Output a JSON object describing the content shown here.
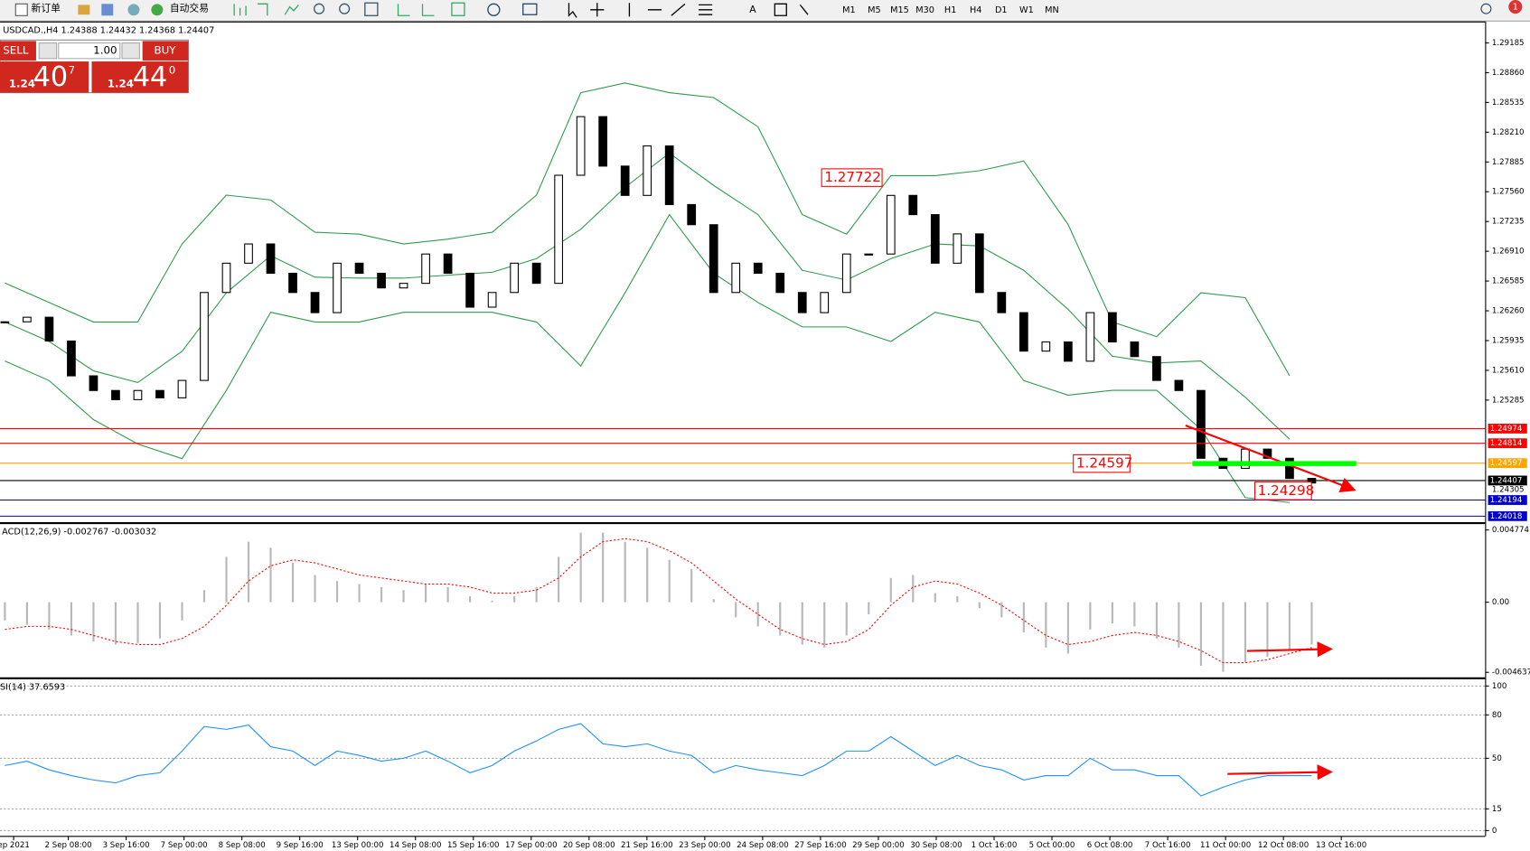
{
  "toolbar": {
    "new_order": "新订单",
    "auto_trading": "自动交易",
    "timeframes": [
      "M1",
      "M5",
      "M15",
      "M30",
      "H1",
      "H4",
      "D1",
      "W1",
      "MN"
    ],
    "notification": "1"
  },
  "trade_panel": {
    "sell": "SELL",
    "buy": "BUY",
    "lot": "1.00",
    "sell_price": {
      "big": "1.24",
      "pips": "40",
      "point": "7"
    },
    "buy_price": {
      "big": "1.24",
      "pips": "44",
      "point": "0"
    }
  },
  "price_chart": {
    "header": "USDCAD.,H4  1.24388 1.24432 1.24368 1.24407",
    "ylim": [
      1.23953,
      1.29419
    ],
    "yticks": [
      1.29185,
      {
        "value": 1.2886,
        "label": "1.28860"
      },
      1.28535,
      {
        "value": 1.2821,
        "label": "1.28210"
      },
      1.27885,
      {
        "value": 1.2756,
        "label": "1.27560"
      },
      1.27235,
      {
        "value": 1.2691,
        "label": "1.26910"
      },
      1.26585,
      {
        "value": 1.2626,
        "label": "1.26260"
      },
      1.25935,
      {
        "value": 1.2561,
        "label": "1.25610"
      },
      1.25285
    ],
    "close": [
      1.2614,
      1.2619,
      1.2593,
      1.2555,
      1.2539,
      1.2529,
      1.2539,
      1.2531,
      1.255,
      1.2646,
      1.2678,
      1.2699,
      1.2667,
      1.2646,
      1.2624,
      1.2678,
      1.2667,
      1.2651,
      1.2656,
      1.2688,
      1.2667,
      1.263,
      1.2646,
      1.2678,
      1.2656,
      1.2774,
      1.2838,
      1.2784,
      1.2752,
      1.2806,
      1.2742,
      1.272,
      1.2646,
      1.2678,
      1.2667,
      1.2646,
      1.2624,
      1.2646,
      1.2688,
      1.2688,
      1.2752,
      1.2731,
      1.2678,
      1.271,
      1.2646,
      1.2624,
      1.2582,
      1.2592,
      1.2571,
      1.2624,
      1.2592,
      1.2576,
      1.255,
      1.2539,
      1.2465,
      1.2454,
      1.2475,
      1.2465,
      1.2443,
      1.2438
    ],
    "bands": {
      "upper": [
        1.26564,
        1.26351,
        1.26138,
        1.26138,
        1.2699,
        1.27523,
        1.2747,
        1.27118,
        1.27097,
        1.2699,
        1.27043,
        1.27118,
        1.27523,
        1.28642,
        1.28748,
        1.28642,
        1.28588,
        1.28269,
        1.2731,
        1.27097,
        1.27736,
        1.27736,
        1.27789,
        1.27896,
        1.27203,
        1.26138,
        1.25978,
        1.26457,
        1.26404,
        1.25552
      ],
      "middle": [
        1.26138,
        1.25925,
        1.25605,
        1.25477,
        1.25818,
        1.26457,
        1.26862,
        1.26627,
        1.26617,
        1.26617,
        1.26649,
        1.26681,
        1.2683,
        1.2715,
        1.27608,
        1.27981,
        1.27629,
        1.2731,
        1.26702,
        1.26596,
        1.2683,
        1.2699,
        1.26969,
        1.26702,
        1.26276,
        1.25765,
        1.2569,
        1.25712,
        1.25317,
        1.24859
      ],
      "lower": [
        1.25712,
        1.25498,
        1.25072,
        1.24806,
        1.24646,
        1.25392,
        1.26244,
        1.26138,
        1.26138,
        1.26244,
        1.26244,
        1.26244,
        1.26138,
        1.25658,
        1.26457,
        1.2731,
        1.2667,
        1.26351,
        1.26084,
        1.26084,
        1.25925,
        1.26244,
        1.26138,
        1.25498,
        1.25339,
        1.25392,
        1.25392,
        1.24966,
        1.2422,
        1.24167
      ]
    },
    "levels": [
      {
        "value": 1.24974,
        "color": "#ff0000"
      },
      {
        "value": 1.24814,
        "color": "#ff0000"
      },
      {
        "value": 1.24597,
        "color": "#ffa500"
      },
      {
        "value": 1.24407,
        "color": "#000000"
      },
      {
        "value": 1.24194,
        "color": "#0000cd"
      },
      {
        "value": 1.24018,
        "color": "#0000cd"
      }
    ],
    "bid_label": 1.24305,
    "annotations": [
      "1.27722",
      "1.24597",
      "1.24298"
    ]
  },
  "macd": {
    "header": "ACD(12,26,9) -0.002767 -0.003032",
    "ylim": [
      -0.0049,
      0.0051
    ],
    "yticks": [
      0.004774,
      {
        "value": 0,
        "label": "0.00"
      },
      -0.004637
    ],
    "histogram": [
      -0.0012,
      -0.0015,
      -0.0018,
      -0.0022,
      -0.0026,
      -0.0028,
      -0.0027,
      -0.0024,
      -0.0012,
      0.0008,
      0.003,
      0.004,
      0.0036,
      0.0026,
      0.0018,
      0.0014,
      0.0012,
      0.001,
      0.0008,
      0.0012,
      0.001,
      0.0004,
      0.0001,
      0.0004,
      0.001,
      0.003,
      0.0046,
      0.0046,
      0.004,
      0.0036,
      0.0028,
      0.0022,
      0.0002,
      -0.001,
      -0.0016,
      -0.0022,
      -0.0028,
      -0.003,
      -0.0022,
      -0.0008,
      0.0016,
      0.0018,
      0.0006,
      0.0004,
      -0.0004,
      -0.001,
      -0.002,
      -0.003,
      -0.0034,
      -0.0018,
      -0.0014,
      -0.0016,
      -0.0024,
      -0.003,
      -0.0042,
      -0.0046,
      -0.004,
      -0.0036,
      -0.0032,
      -0.0028
    ],
    "signal": [
      -0.0018,
      -0.0016,
      -0.0016,
      -0.0018,
      -0.0022,
      -0.0026,
      -0.0028,
      -0.0028,
      -0.0024,
      -0.0016,
      -0.0002,
      0.0014,
      0.0024,
      0.0028,
      0.0026,
      0.0022,
      0.0018,
      0.0016,
      0.0014,
      0.0012,
      0.0012,
      0.001,
      0.0006,
      0.0006,
      0.0008,
      0.0016,
      0.003,
      0.004,
      0.0042,
      0.004,
      0.0034,
      0.0026,
      0.0014,
      0.0002,
      -0.0008,
      -0.0018,
      -0.0024,
      -0.0028,
      -0.0026,
      -0.0018,
      -0.0002,
      0.001,
      0.0014,
      0.0012,
      0.0006,
      -0.0002,
      -0.0012,
      -0.0022,
      -0.0028,
      -0.0026,
      -0.0022,
      -0.002,
      -0.0022,
      -0.0026,
      -0.0032,
      -0.004,
      -0.004,
      -0.0038,
      -0.0034,
      -0.003
    ]
  },
  "rsi": {
    "header": "SI(14) 37.6593",
    "ylim": [
      -4,
      104
    ],
    "yticks": [
      100,
      80,
      50,
      15,
      0
    ],
    "values": [
      45,
      48,
      42,
      38,
      35,
      33,
      38,
      40,
      55,
      72,
      70,
      73,
      58,
      55,
      45,
      55,
      52,
      48,
      50,
      55,
      48,
      40,
      45,
      55,
      62,
      70,
      74,
      60,
      58,
      60,
      55,
      52,
      40,
      45,
      42,
      40,
      38,
      45,
      55,
      55,
      65,
      55,
      45,
      52,
      45,
      42,
      35,
      38,
      38,
      50,
      42,
      42,
      38,
      38,
      24,
      30,
      35,
      38,
      38,
      38
    ]
  },
  "time_axis": [
    "ep 2021",
    "2 Sep 08:00",
    "3 Sep 16:00",
    "7 Sep 00:00",
    "8 Sep 08:00",
    "9 Sep 16:00",
    "13 Sep 00:00",
    "14 Sep 08:00",
    "15 Sep 16:00",
    "17 Sep 00:00",
    "20 Sep 08:00",
    "21 Sep 16:00",
    "23 Sep 00:00",
    "24 Sep 08:00",
    "27 Sep 16:00",
    "29 Sep 00:00",
    "30 Sep 08:00",
    "1 Oct 16:00",
    "5 Oct 00:00",
    "6 Oct 08:00",
    "7 Oct 16:00",
    "11 Oct 00:00",
    "12 Oct 08:00",
    "13 Oct 16:00"
  ]
}
